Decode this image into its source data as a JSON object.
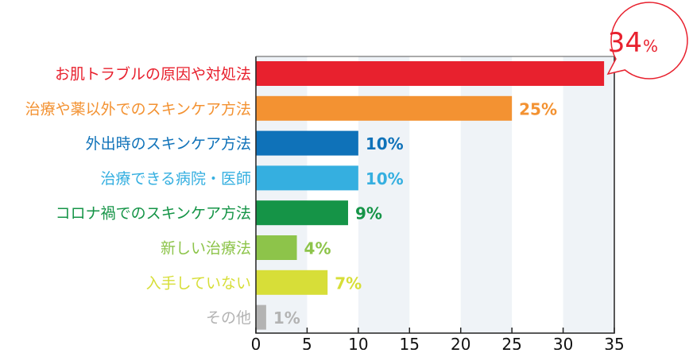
{
  "chart_data": {
    "type": "bar",
    "orientation": "horizontal",
    "categories": [
      "お肌トラブルの原因や対処法",
      "治療や薬以外でのスキンケア方法",
      "外出時のスキンケア方法",
      "治療できる病院・医師",
      "コロナ禍でのスキンケア方法",
      "新しい治療法",
      "入手していない",
      "その他"
    ],
    "values": [
      34,
      25,
      10,
      10,
      9,
      4,
      7,
      1
    ],
    "data_labels": [
      "34",
      "25%",
      "10%",
      "10%",
      "9%",
      "4%",
      "7%",
      "1%"
    ],
    "callout_unit": "%",
    "colors": [
      "#e8212e",
      "#f39232",
      "#0f72b9",
      "#35afe0",
      "#159447",
      "#8dc44a",
      "#d7de38",
      "#b3b3b3"
    ],
    "xlim": [
      0,
      35
    ],
    "xticks": [
      "0",
      "5",
      "10",
      "15",
      "20",
      "25",
      "30",
      "35"
    ],
    "grid": "alternating vertical bands",
    "band_color": "#eff3f7",
    "title": "",
    "xlabel": "",
    "ylabel": ""
  }
}
